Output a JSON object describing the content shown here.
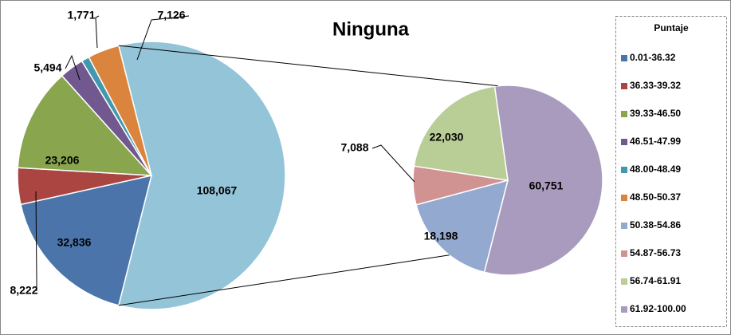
{
  "chart_data": {
    "type": "pie-of-pie",
    "title": "Ninguna",
    "legend_title": "Puntaje",
    "categories": [
      "0.01-36.32",
      "36.33-39.32",
      "39.33-46.50",
      "46.51-47.99",
      "48.00-48.49",
      "48.50-50.37",
      "50.38-54.86",
      "54.87-56.73",
      "56.74-61.91",
      "61.92-100.00"
    ],
    "colors": [
      "#4a74aa",
      "#ab4542",
      "#89a54e",
      "#71588f",
      "#4198af",
      "#db843d",
      "#93a9cf",
      "#d19392",
      "#b9cd96",
      "#a99bbd"
    ],
    "values": [
      32836,
      8222,
      23206,
      5494,
      1771,
      7126,
      18198,
      7088,
      22030,
      60751
    ],
    "value_labels": [
      "32,836",
      "8,222",
      "23,206",
      "5,494",
      "1,771",
      "7,126",
      "18,198",
      "7,088",
      "22,030",
      "60,751"
    ],
    "secondary_count": 4,
    "other_value": 108067,
    "other_label": "108,067",
    "other_color": "#93c4d8"
  }
}
